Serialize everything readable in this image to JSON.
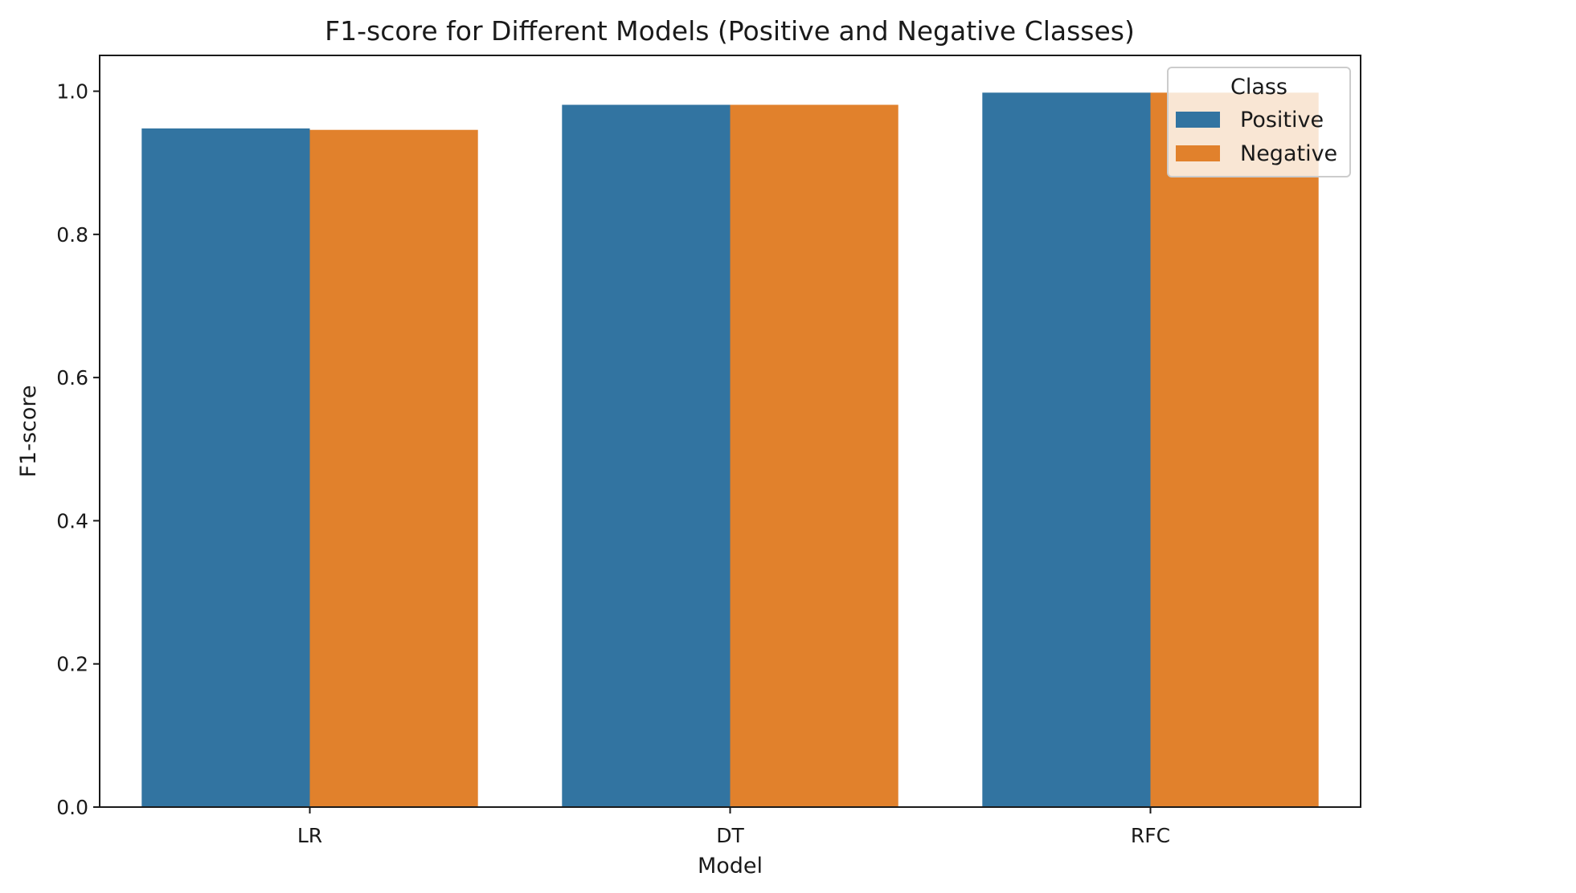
{
  "chart_data": {
    "type": "bar",
    "title": "F1-score for Different Models (Positive and Negative Classes)",
    "xlabel": "Model",
    "ylabel": "F1-score",
    "categories": [
      "LR",
      "DT",
      "RFC"
    ],
    "series": [
      {
        "name": "Positive",
        "values": [
          0.948,
          0.981,
          0.998
        ],
        "color": "#3274a1"
      },
      {
        "name": "Negative",
        "values": [
          0.946,
          0.981,
          0.998
        ],
        "color": "#e1812c"
      }
    ],
    "ylim": [
      0,
      1.05
    ],
    "yticks": [
      0.0,
      0.2,
      0.4,
      0.6,
      0.8,
      1.0
    ],
    "ytick_labels": [
      "0.0",
      "0.2",
      "0.4",
      "0.6",
      "0.8",
      "1.0"
    ],
    "grid": false,
    "legend": {
      "title": "Class",
      "position": "top-right"
    }
  }
}
